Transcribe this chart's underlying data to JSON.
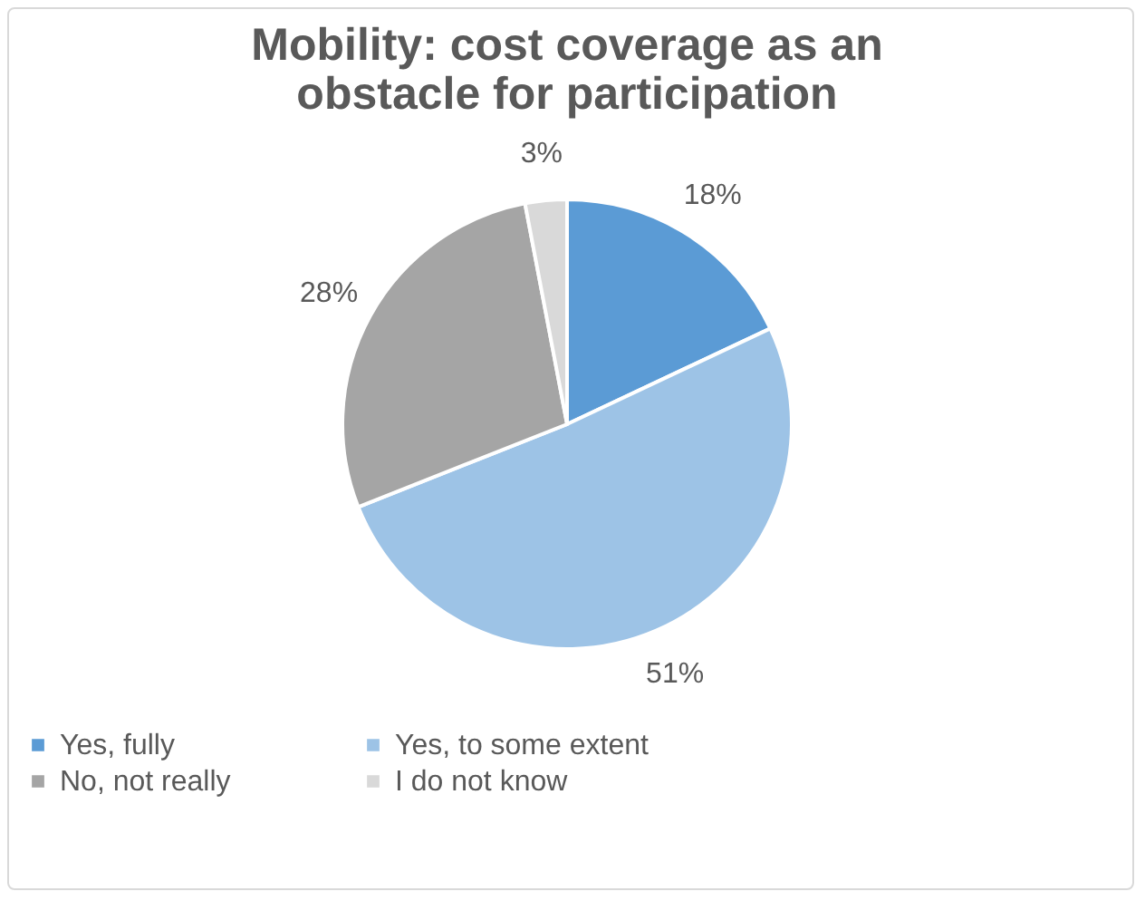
{
  "chart_data": {
    "type": "pie",
    "title": "Mobility: cost coverage as an obstacle for participation",
    "categories": [
      "Yes, fully",
      "Yes, to some extent",
      "No, not really",
      "I do not know"
    ],
    "values": [
      18,
      51,
      28,
      3
    ],
    "colors": [
      "#5b9bd5",
      "#9dc3e6",
      "#a5a5a5",
      "#d9d9d9"
    ],
    "value_labels": [
      "18%",
      "51%",
      "28%",
      "3%"
    ],
    "legend": "bottom"
  }
}
